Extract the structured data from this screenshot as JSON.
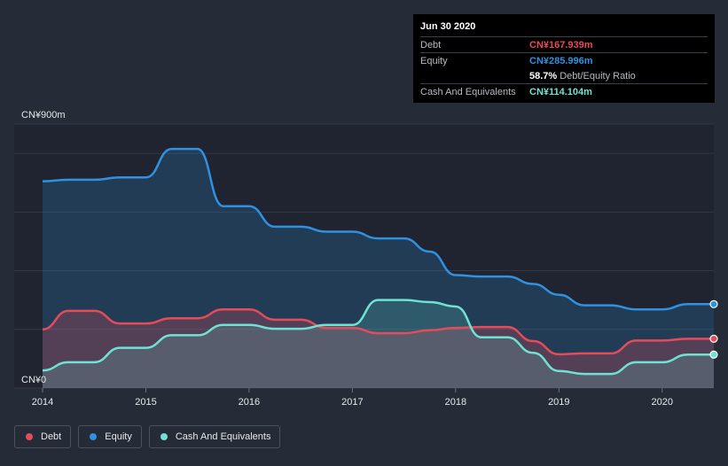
{
  "tooltip": {
    "date": "Jun 30 2020",
    "debt_label": "Debt",
    "debt_value": "CN¥167.939m",
    "equity_label": "Equity",
    "equity_value": "CN¥285.996m",
    "ratio_value": "58.7%",
    "ratio_label": "Debt/Equity Ratio",
    "cash_label": "Cash And Equivalents",
    "cash_value": "CN¥114.104m"
  },
  "colors": {
    "debt": "#e64b5a",
    "equity": "#2f91e0",
    "cash": "#6fe3d3"
  },
  "legend": [
    {
      "name": "Debt",
      "color": "#e64b5a"
    },
    {
      "name": "Equity",
      "color": "#2f91e0"
    },
    {
      "name": "Cash And Equivalents",
      "color": "#6fe3d3"
    }
  ],
  "chart_data": {
    "type": "area",
    "title": "",
    "xlabel": "",
    "ylabel": "",
    "y_top_label": "CN¥900m",
    "y_bottom_label": "CN¥0",
    "ylim": [
      0,
      900
    ],
    "xlim": [
      2014,
      2020.5
    ],
    "x_ticks": [
      2014,
      2015,
      2016,
      2017,
      2018,
      2019,
      2020
    ],
    "x_tick_labels": [
      "2014",
      "2015",
      "2016",
      "2017",
      "2018",
      "2019",
      "2020"
    ],
    "grid": true,
    "series": [
      {
        "name": "Equity",
        "x": [
          2014.0,
          2014.25,
          2014.5,
          2014.75,
          2015.0,
          2015.25,
          2015.5,
          2015.75,
          2016.0,
          2016.25,
          2016.5,
          2016.75,
          2017.0,
          2017.25,
          2017.5,
          2017.75,
          2018.0,
          2018.25,
          2018.5,
          2018.75,
          2019.0,
          2019.25,
          2019.5,
          2019.75,
          2020.0,
          2020.25,
          2020.5
        ],
        "values": [
          705,
          710,
          710,
          718,
          718,
          815,
          815,
          620,
          620,
          550,
          550,
          533,
          533,
          510,
          510,
          465,
          385,
          380,
          380,
          355,
          318,
          282,
          282,
          268,
          268,
          286,
          286
        ]
      },
      {
        "name": "Debt",
        "x": [
          2014.0,
          2014.25,
          2014.5,
          2014.75,
          2015.0,
          2015.25,
          2015.5,
          2015.75,
          2016.0,
          2016.25,
          2016.5,
          2016.75,
          2017.0,
          2017.25,
          2017.5,
          2017.75,
          2018.0,
          2018.25,
          2018.5,
          2018.75,
          2019.0,
          2019.25,
          2019.5,
          2019.75,
          2020.0,
          2020.25,
          2020.5
        ],
        "values": [
          200,
          263,
          263,
          220,
          220,
          238,
          238,
          268,
          268,
          233,
          233,
          205,
          205,
          187,
          187,
          197,
          205,
          208,
          208,
          160,
          115,
          118,
          118,
          162,
          162,
          168,
          168
        ]
      },
      {
        "name": "Cash And Equivalents",
        "x": [
          2014.0,
          2014.25,
          2014.5,
          2014.75,
          2015.0,
          2015.25,
          2015.5,
          2015.75,
          2016.0,
          2016.25,
          2016.5,
          2016.75,
          2017.0,
          2017.25,
          2017.5,
          2017.75,
          2018.0,
          2018.25,
          2018.5,
          2018.75,
          2019.0,
          2019.25,
          2019.5,
          2019.75,
          2020.0,
          2020.25,
          2020.5
        ],
        "values": [
          60,
          88,
          88,
          137,
          137,
          180,
          180,
          215,
          215,
          202,
          202,
          215,
          215,
          300,
          300,
          293,
          278,
          173,
          173,
          120,
          58,
          48,
          48,
          88,
          88,
          114,
          114
        ]
      }
    ]
  }
}
